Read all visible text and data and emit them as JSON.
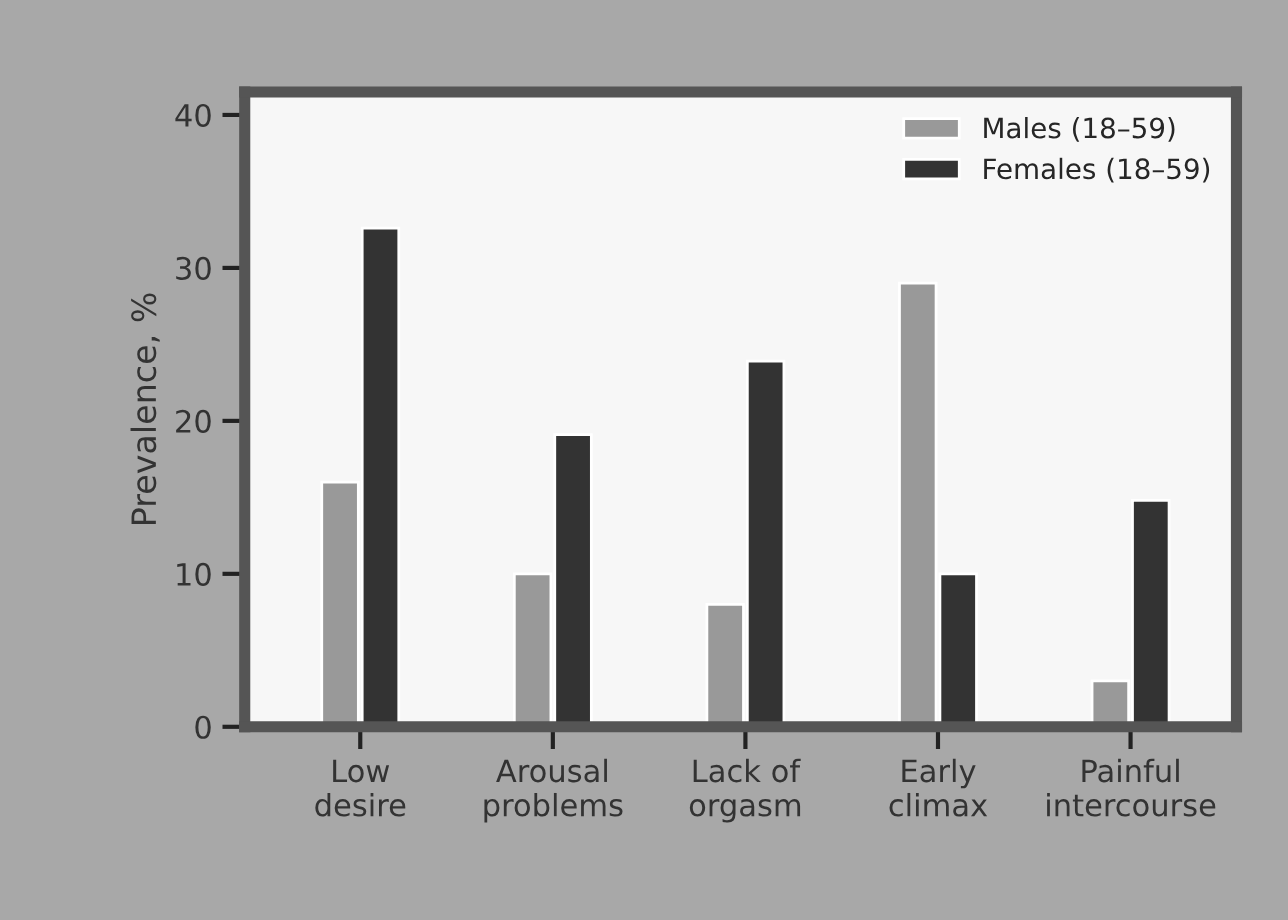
{
  "chart_data": {
    "type": "bar",
    "ylabel": "Prevalence, %",
    "categories": [
      "Low\ndesire",
      "Arousal\nproblems",
      "Lack of\norgasm",
      "Early\nclimax",
      "Painful\nintercourse"
    ],
    "series": [
      {
        "name": "Males (18–59)",
        "color": "#999999",
        "values": [
          16,
          10,
          8,
          29,
          3
        ]
      },
      {
        "name": "Females (18–59)",
        "color": "#333333",
        "values": [
          32.6,
          19.1,
          23.9,
          10,
          14.8
        ]
      }
    ],
    "ylim": [
      0,
      41.5
    ],
    "yticks": [
      0,
      10,
      20,
      30,
      40
    ],
    "grid": false,
    "legend": "top right"
  }
}
